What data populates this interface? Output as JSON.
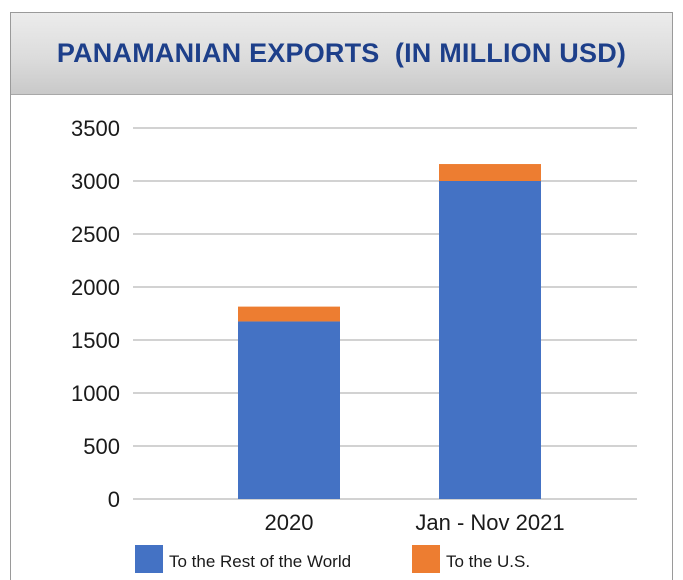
{
  "chart_data": {
    "type": "bar",
    "stacked": true,
    "title": "PANAMANIAN EXPORTS  (IN MILLION USD)",
    "categories": [
      "2020",
      "Jan - Nov 2021"
    ],
    "series": [
      {
        "name": "To the Rest of the World",
        "color": "#4472c4",
        "values": [
          1675,
          3000
        ]
      },
      {
        "name": "To the U.S.",
        "color": "#ed7d31",
        "values": [
          140,
          160
        ]
      }
    ],
    "ylim": [
      0,
      3500
    ],
    "yticks": [
      "0",
      "500",
      "1000",
      "1500",
      "2000",
      "2500",
      "3000",
      "3500"
    ],
    "grid": true,
    "legend": "bottom"
  }
}
